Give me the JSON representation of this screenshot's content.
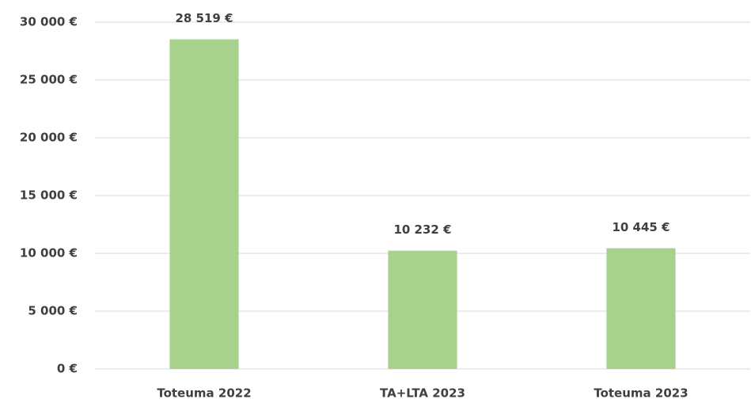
{
  "chart_data": {
    "type": "bar",
    "categories": [
      "Toteuma 2022",
      "TA+LTA 2023",
      "Toteuma 2023"
    ],
    "values": [
      28519,
      10232,
      10445
    ],
    "value_labels": [
      "28 519 €",
      "10 232 €",
      "10 445 €"
    ],
    "color": "#a9d18e",
    "ylim": [
      0,
      30000
    ],
    "yticks": [
      {
        "value": 0,
        "label": "0 €"
      },
      {
        "value": 5000,
        "label": "5 000 €"
      },
      {
        "value": 10000,
        "label": "10 000 €"
      },
      {
        "value": 15000,
        "label": "15 000 €"
      },
      {
        "value": 20000,
        "label": "20 000 €"
      },
      {
        "value": 25000,
        "label": "25 000 €"
      },
      {
        "value": 30000,
        "label": "30 000 €"
      }
    ],
    "grid": true
  }
}
